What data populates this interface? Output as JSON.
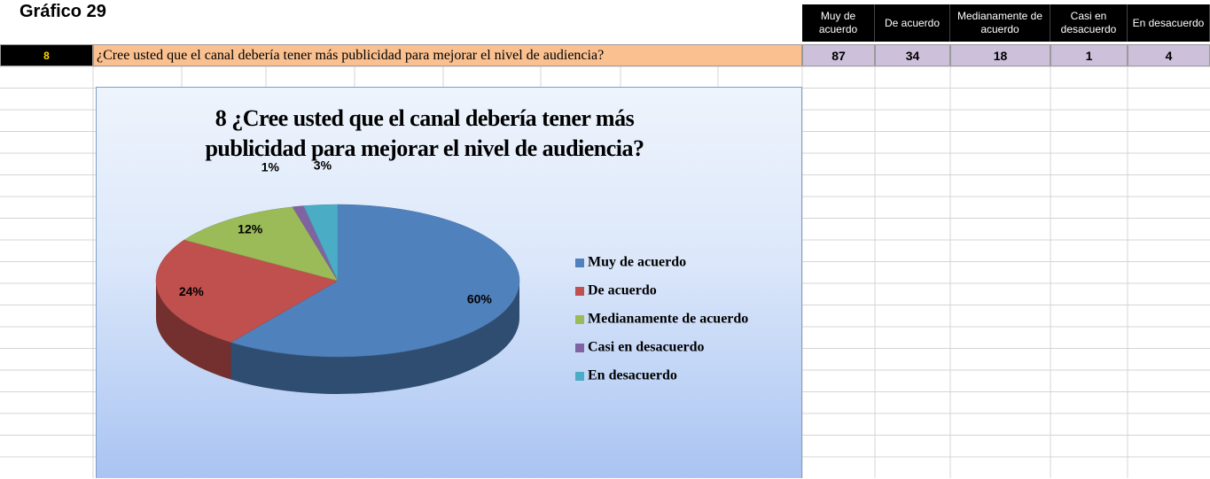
{
  "heading": "Gráfico 29",
  "table": {
    "columns": [
      "Muy de acuerdo",
      "De acuerdo",
      "Medianamente de acuerdo",
      "Casi en desacuerdo",
      "En desacuerdo"
    ],
    "row": {
      "number": "8",
      "question": "¿Cree usted que el canal debería tener más publicidad para mejorar el nivel de audiencia?",
      "values": [
        87,
        34,
        18,
        1,
        4
      ]
    }
  },
  "chart_data": {
    "type": "pie",
    "title": "8 ¿Cree usted que el canal debería tener más publicidad para mejorar el nivel de audiencia?",
    "categories": [
      "Muy de acuerdo",
      "De acuerdo",
      "Medianamente de acuerdo",
      "Casi en desacuerdo",
      "En desacuerdo"
    ],
    "values": [
      60,
      24,
      12,
      1,
      3
    ],
    "value_labels": [
      "60%",
      "24%",
      "12%",
      "1%",
      "3%"
    ],
    "colors": [
      "#4f81bd",
      "#c0504d",
      "#9bbb59",
      "#8064a2",
      "#4bacc6"
    ],
    "legend": "right"
  }
}
